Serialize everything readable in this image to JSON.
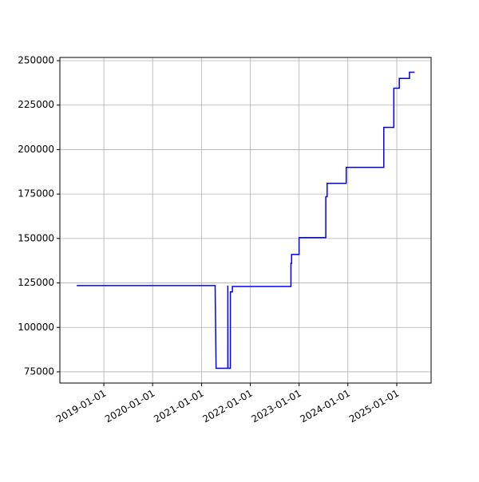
{
  "chart_data": {
    "type": "line",
    "x": [
      "2018-06-12",
      "2021-04-13",
      "2021-04-20",
      "2021-07-17",
      "2021-07-17",
      "2021-07-18",
      "2021-08-05",
      "2021-08-05",
      "2021-08-20",
      "2021-08-20",
      "2022-11-01",
      "2022-11-01",
      "2022-11-06",
      "2022-11-06",
      "2023-01-01",
      "2023-01-01",
      "2023-07-20",
      "2023-07-20",
      "2023-07-30",
      "2023-07-30",
      "2023-12-20",
      "2023-12-20",
      "2024-09-26",
      "2024-09-26",
      "2024-12-10",
      "2024-12-10",
      "2025-01-20",
      "2025-01-20",
      "2025-04-06",
      "2025-04-06",
      "2025-05-15"
    ],
    "series": [
      {
        "color": "#0000ff",
        "values": [
          123500,
          123500,
          77000,
          77000,
          123500,
          77000,
          77000,
          120000,
          120000,
          123000,
          123000,
          136000,
          136000,
          141000,
          141000,
          150500,
          150500,
          173500,
          173500,
          181000,
          181000,
          190000,
          190000,
          212500,
          212500,
          234500,
          234500,
          240000,
          240000,
          243500,
          243500
        ]
      }
    ],
    "xlim": [
      "2018-02-06",
      "2025-09-15"
    ],
    "xticks": [
      "2019-01-01",
      "2020-01-01",
      "2021-01-01",
      "2022-01-01",
      "2023-01-01",
      "2024-01-01",
      "2025-01-01"
    ],
    "ylim": [
      68700,
      251800
    ],
    "yticks": [
      75000,
      100000,
      125000,
      150000,
      175000,
      200000,
      225000,
      250000
    ],
    "grid": true
  }
}
